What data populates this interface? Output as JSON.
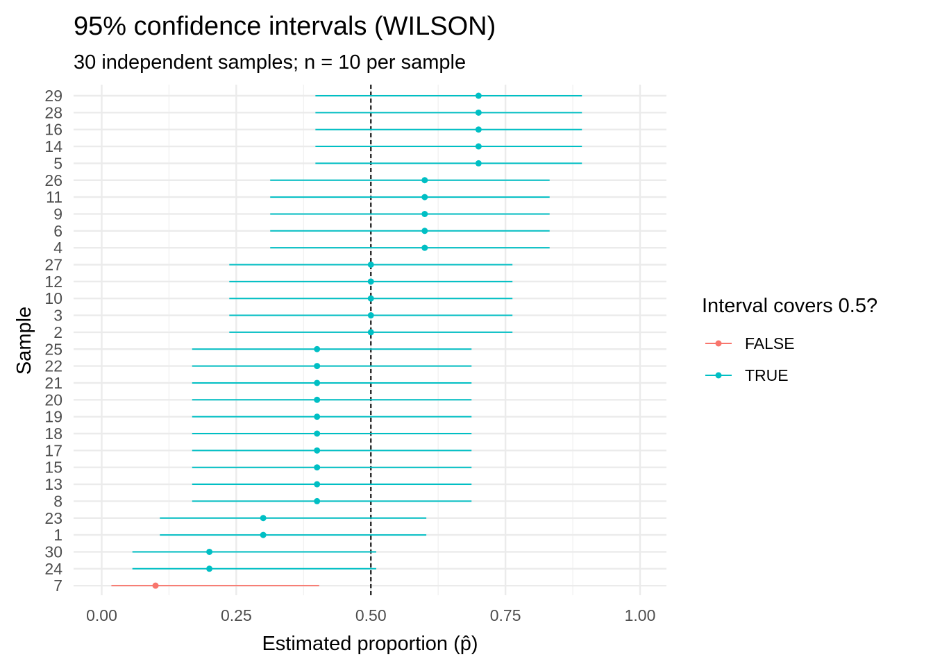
{
  "chart_data": {
    "type": "interval",
    "title": "95% confidence intervals (WILSON)",
    "subtitle": "30 independent samples; n = 10 per sample",
    "xlabel": "Estimated proportion (p̂)",
    "ylabel": "Sample",
    "xlim": [
      -0.05,
      1.05
    ],
    "x_ticks": [
      0,
      0.25,
      0.5,
      0.75,
      1
    ],
    "x_tick_labels": [
      "0.00",
      "0.25",
      "0.50",
      "0.75",
      "1.00"
    ],
    "reference_line": 0.5,
    "grid": true,
    "legend": {
      "title": "Interval covers 0.5?",
      "position": "right",
      "entries": [
        {
          "label": "FALSE",
          "color": "#F8766D"
        },
        {
          "label": "TRUE",
          "color": "#00BFC4"
        }
      ]
    },
    "colors": {
      "FALSE": "#F8766D",
      "TRUE": "#00BFC4"
    },
    "samples": [
      {
        "sample": "7",
        "p": 0.1,
        "lower": 0.018,
        "upper": 0.404,
        "covers": false
      },
      {
        "sample": "24",
        "p": 0.2,
        "lower": 0.057,
        "upper": 0.51,
        "covers": true
      },
      {
        "sample": "30",
        "p": 0.2,
        "lower": 0.057,
        "upper": 0.51,
        "covers": true
      },
      {
        "sample": "1",
        "p": 0.3,
        "lower": 0.108,
        "upper": 0.603,
        "covers": true
      },
      {
        "sample": "23",
        "p": 0.3,
        "lower": 0.108,
        "upper": 0.603,
        "covers": true
      },
      {
        "sample": "8",
        "p": 0.4,
        "lower": 0.168,
        "upper": 0.687,
        "covers": true
      },
      {
        "sample": "13",
        "p": 0.4,
        "lower": 0.168,
        "upper": 0.687,
        "covers": true
      },
      {
        "sample": "15",
        "p": 0.4,
        "lower": 0.168,
        "upper": 0.687,
        "covers": true
      },
      {
        "sample": "17",
        "p": 0.4,
        "lower": 0.168,
        "upper": 0.687,
        "covers": true
      },
      {
        "sample": "18",
        "p": 0.4,
        "lower": 0.168,
        "upper": 0.687,
        "covers": true
      },
      {
        "sample": "19",
        "p": 0.4,
        "lower": 0.168,
        "upper": 0.687,
        "covers": true
      },
      {
        "sample": "20",
        "p": 0.4,
        "lower": 0.168,
        "upper": 0.687,
        "covers": true
      },
      {
        "sample": "21",
        "p": 0.4,
        "lower": 0.168,
        "upper": 0.687,
        "covers": true
      },
      {
        "sample": "22",
        "p": 0.4,
        "lower": 0.168,
        "upper": 0.687,
        "covers": true
      },
      {
        "sample": "25",
        "p": 0.4,
        "lower": 0.168,
        "upper": 0.687,
        "covers": true
      },
      {
        "sample": "2",
        "p": 0.5,
        "lower": 0.237,
        "upper": 0.763,
        "covers": true
      },
      {
        "sample": "3",
        "p": 0.5,
        "lower": 0.237,
        "upper": 0.763,
        "covers": true
      },
      {
        "sample": "10",
        "p": 0.5,
        "lower": 0.237,
        "upper": 0.763,
        "covers": true
      },
      {
        "sample": "12",
        "p": 0.5,
        "lower": 0.237,
        "upper": 0.763,
        "covers": true
      },
      {
        "sample": "27",
        "p": 0.5,
        "lower": 0.237,
        "upper": 0.763,
        "covers": true
      },
      {
        "sample": "4",
        "p": 0.6,
        "lower": 0.313,
        "upper": 0.832,
        "covers": true
      },
      {
        "sample": "6",
        "p": 0.6,
        "lower": 0.313,
        "upper": 0.832,
        "covers": true
      },
      {
        "sample": "9",
        "p": 0.6,
        "lower": 0.313,
        "upper": 0.832,
        "covers": true
      },
      {
        "sample": "11",
        "p": 0.6,
        "lower": 0.313,
        "upper": 0.832,
        "covers": true
      },
      {
        "sample": "26",
        "p": 0.6,
        "lower": 0.313,
        "upper": 0.832,
        "covers": true
      },
      {
        "sample": "5",
        "p": 0.7,
        "lower": 0.397,
        "upper": 0.892,
        "covers": true
      },
      {
        "sample": "14",
        "p": 0.7,
        "lower": 0.397,
        "upper": 0.892,
        "covers": true
      },
      {
        "sample": "16",
        "p": 0.7,
        "lower": 0.397,
        "upper": 0.892,
        "covers": true
      },
      {
        "sample": "28",
        "p": 0.7,
        "lower": 0.397,
        "upper": 0.892,
        "covers": true
      },
      {
        "sample": "29",
        "p": 0.7,
        "lower": 0.397,
        "upper": 0.892,
        "covers": true
      }
    ]
  }
}
